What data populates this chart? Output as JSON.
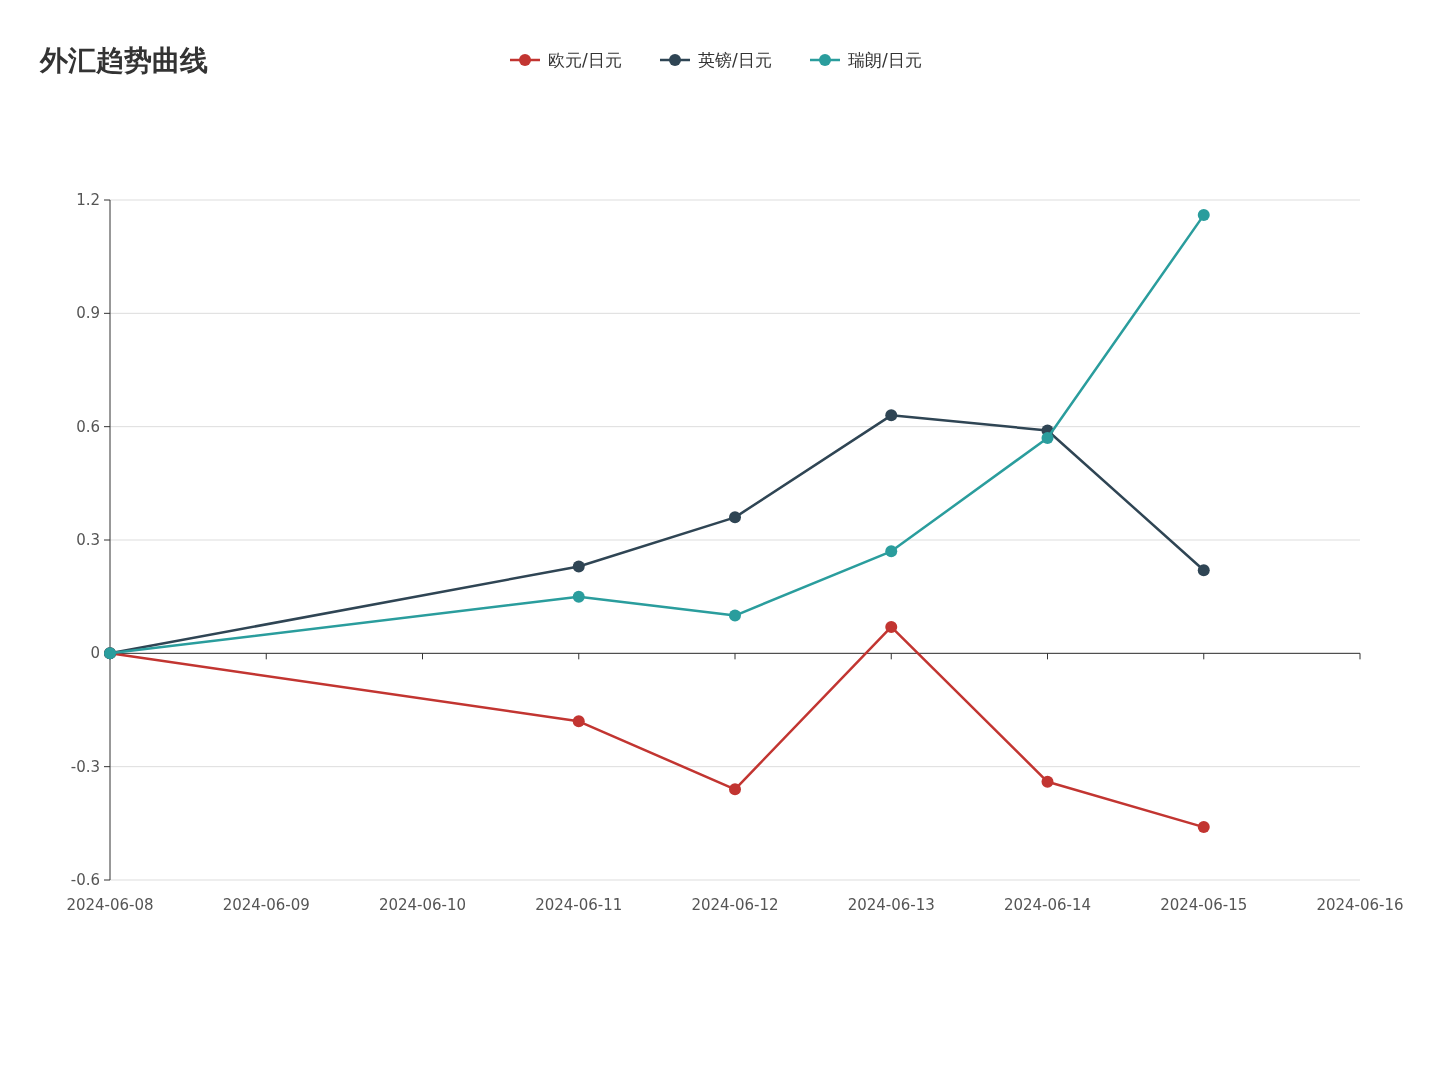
{
  "chart_data": {
    "type": "line",
    "title": "外汇趋势曲线",
    "series": [
      {
        "name": "欧元/日元",
        "color": "#c23531",
        "x": [
          "2024-06-08",
          "2024-06-11",
          "2024-06-12",
          "2024-06-13",
          "2024-06-14",
          "2024-06-15"
        ],
        "values": [
          0,
          -0.18,
          -0.36,
          0.07,
          -0.34,
          -0.46
        ]
      },
      {
        "name": "英镑/日元",
        "color": "#2f4554",
        "x": [
          "2024-06-08",
          "2024-06-11",
          "2024-06-12",
          "2024-06-13",
          "2024-06-14",
          "2024-06-15"
        ],
        "values": [
          0,
          0.23,
          0.36,
          0.63,
          0.59,
          0.22
        ]
      },
      {
        "name": "瑞朗/日元",
        "color": "#2a9d9d",
        "x": [
          "2024-06-08",
          "2024-06-11",
          "2024-06-12",
          "2024-06-13",
          "2024-06-14",
          "2024-06-15"
        ],
        "values": [
          0,
          0.15,
          0.1,
          0.27,
          0.57,
          1.16
        ]
      }
    ],
    "xlim": [
      "2024-06-08",
      "2024-06-16"
    ],
    "xticks": [
      "2024-06-08",
      "2024-06-09",
      "2024-06-10",
      "2024-06-11",
      "2024-06-12",
      "2024-06-13",
      "2024-06-14",
      "2024-06-15",
      "2024-06-16"
    ],
    "ylim": [
      -0.6,
      1.2
    ],
    "yticks": [
      -0.6,
      -0.3,
      0,
      0.3,
      0.6,
      0.9,
      1.2
    ],
    "grid": "y",
    "legend": "top",
    "marker": "circle",
    "line_style": "solid"
  }
}
